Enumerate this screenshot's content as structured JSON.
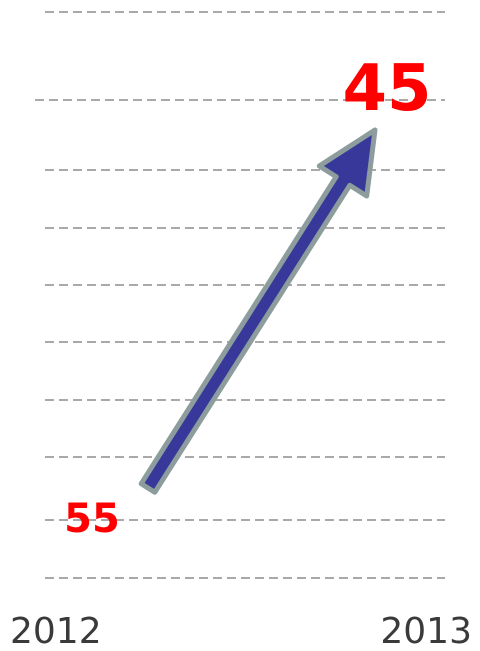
{
  "start": {
    "year": "2012",
    "value": "55"
  },
  "end": {
    "year": "2013",
    "value": "45"
  }
}
